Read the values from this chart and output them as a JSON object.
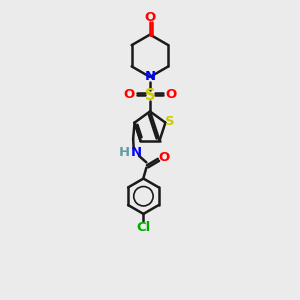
{
  "bg_color": "#ebebeb",
  "bond_color": "#1a1a1a",
  "N_color": "#0000ff",
  "O_color": "#ff0000",
  "S_color": "#cccc00",
  "Cl_color": "#00aa00",
  "H_color": "#5f9ea0",
  "lw": 1.8,
  "fs": 9.5,
  "xlim": [
    0,
    6
  ],
  "ylim": [
    0,
    10
  ]
}
